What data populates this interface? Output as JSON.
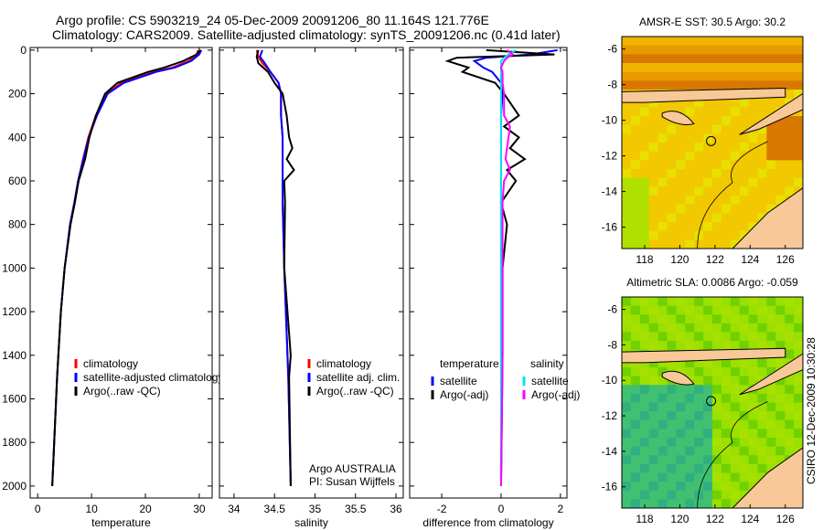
{
  "title_line1": "Argo profile: CS 5903219_24 05-Dec-2009 20091206_80 11.164S 121.776E",
  "title_line2": "Climatology: CARS2009. Satellite-adjusted climatology: synTS_20091206.nc (0.41d later)",
  "side_label": "CSIRO 12-Dec-2009 10:30:28",
  "colors": {
    "climatology": "#ff0000",
    "satellite": "#0000ff",
    "argo": "#000000",
    "sal_satellite": "#00e5ee",
    "sal_argo": "#ff00ff"
  },
  "chart_data": [
    {
      "type": "line",
      "xlabel": "temperature",
      "xlim": [
        -1.4,
        32.4
      ],
      "ylim": [
        2055,
        -12
      ],
      "xticks": [
        0,
        10,
        20,
        30
      ],
      "yticks": [
        0,
        200,
        400,
        600,
        800,
        1000,
        1200,
        1400,
        1600,
        1800,
        2000
      ],
      "legend": [
        "climatology",
        "satellite-adjusted climatology",
        "Argo(..raw -QC)"
      ],
      "depth": [
        0,
        20,
        50,
        80,
        100,
        150,
        200,
        300,
        400,
        500,
        600,
        700,
        800,
        1000,
        1200,
        1500,
        2000
      ],
      "series": [
        {
          "name": "climatology",
          "color": "#ff0000",
          "values": [
            29.8,
            29.5,
            28,
            25,
            21.5,
            15.5,
            12.8,
            10.8,
            9.4,
            8.4,
            7.5,
            6.8,
            6.0,
            5.0,
            4.3,
            3.6,
            2.7
          ]
        },
        {
          "name": "satellite",
          "color": "#0000ff",
          "values": [
            30.4,
            30,
            28.5,
            25.5,
            22,
            16,
            13,
            11,
            9.5,
            8.5,
            7.5,
            6.8,
            6.0,
            5.0,
            4.3,
            3.6,
            2.7
          ]
        },
        {
          "name": "argo",
          "color": "#000000",
          "values": [
            30.2,
            29.5,
            27,
            23.5,
            20.5,
            14.8,
            12.5,
            10.8,
            9.6,
            8.8,
            7.6,
            6.9,
            6.1,
            5.0,
            4.3,
            3.6,
            2.7
          ]
        }
      ]
    },
    {
      "type": "line",
      "xlabel": "salinity",
      "xlim": [
        33.82,
        36.09
      ],
      "ylim": [
        2055,
        -12
      ],
      "xticks": [
        34,
        34.5,
        35,
        35.5,
        36
      ],
      "yticks": [],
      "legend": [
        "climatology",
        "satellite adj. clim.",
        "Argo(..raw -QC)"
      ],
      "annotation": [
        "Argo AUSTRALIA",
        "PI: Susan Wijffels"
      ],
      "depth": [
        0,
        30,
        60,
        100,
        150,
        200,
        300,
        400,
        450,
        500,
        550,
        600,
        700,
        1000,
        1400,
        1500,
        2000
      ],
      "series": [
        {
          "name": "climatology",
          "color": "#ff0000",
          "values": [
            34.28,
            34.3,
            34.35,
            34.45,
            34.55,
            34.58,
            34.58,
            34.6,
            34.6,
            34.6,
            34.6,
            34.6,
            34.6,
            34.62,
            34.66,
            34.67,
            34.7
          ]
        },
        {
          "name": "satellite",
          "color": "#0000ff",
          "values": [
            34.35,
            34.32,
            34.38,
            34.45,
            34.55,
            34.58,
            34.58,
            34.6,
            34.6,
            34.6,
            34.6,
            34.6,
            34.6,
            34.62,
            34.66,
            34.67,
            34.7
          ]
        },
        {
          "name": "argo",
          "color": "#000000",
          "values": [
            34.3,
            34.28,
            34.3,
            34.42,
            34.5,
            34.6,
            34.65,
            34.68,
            34.72,
            34.65,
            34.74,
            34.62,
            34.63,
            34.62,
            34.7,
            34.68,
            34.7
          ]
        }
      ]
    },
    {
      "type": "line",
      "xlabel": "difference from climatology",
      "xlim": [
        -3.08,
        2.22
      ],
      "ylim": [
        2055,
        -12
      ],
      "xticks": [
        -2,
        0,
        2
      ],
      "yticks": [],
      "legend_temperature": {
        "title": "temperature",
        "items": [
          "satellite",
          "Argo(-adj)"
        ]
      },
      "legend_salinity": {
        "title": "salinity",
        "items": [
          "satellite",
          "Argo(-adj)"
        ]
      },
      "depth": [
        0,
        20,
        35,
        50,
        80,
        100,
        150,
        200,
        300,
        350,
        400,
        450,
        500,
        550,
        600,
        700,
        800,
        1000,
        1400,
        2000
      ],
      "series": [
        {
          "name": "temperature satellite",
          "color": "#0000ff",
          "values": [
            1.9,
            1,
            -0.5,
            -0.9,
            -0.6,
            -0.3,
            0,
            0.05,
            0,
            0,
            0,
            0,
            0,
            0,
            0,
            0,
            0,
            0,
            0,
            0
          ]
        },
        {
          "name": "temperature Argo(-adj)",
          "color": "#000000",
          "values": [
            -0.5,
            1.8,
            -1.5,
            -1.8,
            -1.1,
            -1.3,
            -0.2,
            0.1,
            0.6,
            0.1,
            0.6,
            0.3,
            0.8,
            0.2,
            0.5,
            0,
            0.2,
            0.05,
            0.05,
            0
          ]
        },
        {
          "name": "salinity satellite",
          "color": "#00e5ee",
          "values": [
            0.5,
            0.25,
            0.1,
            0,
            0,
            0,
            0,
            0,
            0,
            0,
            0,
            0,
            0,
            0,
            0,
            0,
            0,
            0,
            0,
            0
          ]
        },
        {
          "name": "salinity Argo(-adj)",
          "color": "#ff00ff",
          "values": [
            0.2,
            0.4,
            0.2,
            0.1,
            0,
            0.05,
            0.05,
            0.1,
            0.1,
            0.3,
            0.25,
            0.2,
            0.15,
            0.3,
            0.1,
            0.05,
            0.05,
            0.05,
            0.05,
            0
          ]
        }
      ]
    },
    {
      "type": "heatmap",
      "title": "AMSR-E SST: 30.5 Argo: 30.2",
      "xticks": [
        118,
        120,
        122,
        124,
        126
      ],
      "yticks": [
        -6,
        -8,
        -10,
        -12,
        -14,
        -16
      ],
      "xlim": [
        116.7,
        127
      ],
      "ylim": [
        -17.2,
        -5.3
      ],
      "marker": [
        121.776,
        -11.164
      ]
    },
    {
      "type": "heatmap",
      "title": "Altimetric SLA: 0.0086 Argo: -0.059",
      "xticks": [
        118,
        120,
        122,
        124,
        126
      ],
      "yticks": [
        -6,
        -8,
        -10,
        -12,
        -14,
        -16
      ],
      "xlim": [
        116.7,
        127
      ],
      "ylim": [
        -17.2,
        -5.3
      ],
      "marker": [
        121.776,
        -11.164
      ]
    }
  ]
}
